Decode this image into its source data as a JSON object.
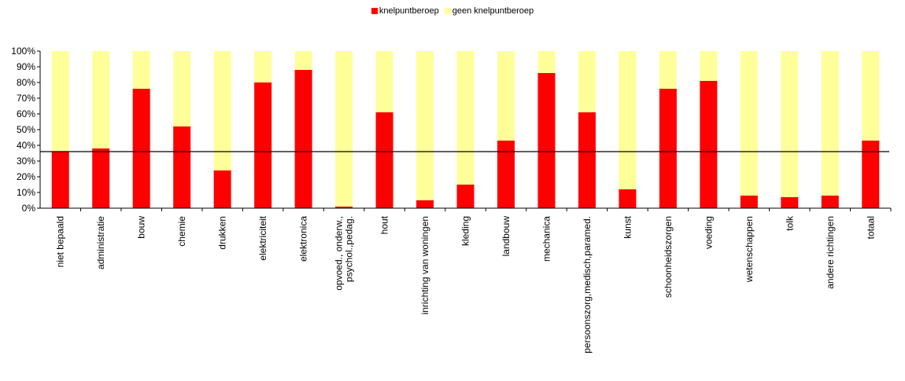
{
  "chart_data": {
    "type": "bar",
    "stacked": true,
    "categories": [
      [
        "niet bepaald"
      ],
      [
        "administratie"
      ],
      [
        "bouw"
      ],
      [
        "chemie"
      ],
      [
        "drukken"
      ],
      [
        "elektriciteit"
      ],
      [
        "elektronica"
      ],
      [
        "opvoed., onderw.,",
        "psychol.,pedag."
      ],
      [
        "hout"
      ],
      [
        "inrichting van woningen"
      ],
      [
        "kleding"
      ],
      [
        "landbouw"
      ],
      [
        "mechanica"
      ],
      [
        "persoonszorg,medisch,paramed."
      ],
      [
        "kunst"
      ],
      [
        "schoonheidszorgen"
      ],
      [
        "voeding"
      ],
      [
        "wetenschappen"
      ],
      [
        "tolk"
      ],
      [
        "andere richtingen"
      ],
      [
        "totaal"
      ]
    ],
    "series": [
      {
        "name": "knelpuntberoep",
        "color": "#FF0000",
        "values": [
          36,
          38,
          76,
          52,
          24,
          80,
          88,
          1,
          61,
          5,
          15,
          43,
          86,
          61,
          12,
          76,
          81,
          8,
          7,
          8,
          43
        ]
      },
      {
        "name": "geen knelpuntberoep",
        "color": "#FFFF99",
        "values": [
          64,
          62,
          24,
          48,
          76,
          20,
          12,
          99,
          39,
          95,
          85,
          57,
          14,
          39,
          88,
          24,
          19,
          92,
          93,
          92,
          57
        ]
      }
    ],
    "reference_line": 36,
    "y_ticks": [
      "0%",
      "10%",
      "20%",
      "30%",
      "40%",
      "50%",
      "60%",
      "70%",
      "80%",
      "90%",
      "100%"
    ],
    "ylim": [
      0,
      100
    ],
    "legend_position": "top"
  }
}
